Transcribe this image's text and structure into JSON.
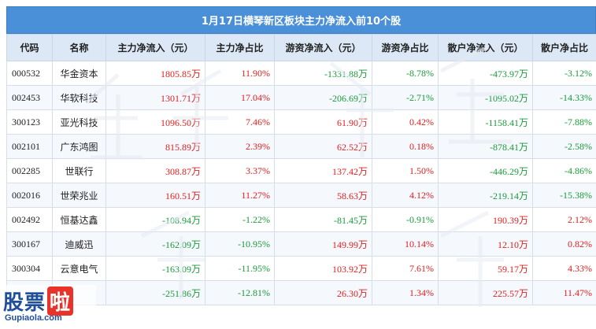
{
  "title": "1月17日横琴新区板块主力净流入前10个股",
  "columns": [
    "代码",
    "名称",
    "主力净流入（元）",
    "主力净占比",
    "游资净流入（元）",
    "游资净占比",
    "散户净流入（元）",
    "散户净占比"
  ],
  "rows": [
    {
      "code": "000532",
      "name": "华金资本",
      "main_in": "1805.85万",
      "main_pct": "11.90%",
      "hot_in": "-1331.88万",
      "hot_pct": "-8.78%",
      "retail_in": "-473.97万",
      "retail_pct": "-3.12%",
      "dir": [
        "pos",
        "pos",
        "neg",
        "neg",
        "neg",
        "neg"
      ]
    },
    {
      "code": "002453",
      "name": "华软科技",
      "main_in": "1301.71万",
      "main_pct": "17.04%",
      "hot_in": "-206.69万",
      "hot_pct": "-2.71%",
      "retail_in": "-1095.02万",
      "retail_pct": "-14.33%",
      "dir": [
        "pos",
        "pos",
        "neg",
        "neg",
        "neg",
        "neg"
      ]
    },
    {
      "code": "300123",
      "name": "亚光科技",
      "main_in": "1096.50万",
      "main_pct": "7.46%",
      "hot_in": "61.90万",
      "hot_pct": "0.42%",
      "retail_in": "-1158.41万",
      "retail_pct": "-7.88%",
      "dir": [
        "pos",
        "pos",
        "pos",
        "pos",
        "neg",
        "neg"
      ]
    },
    {
      "code": "002101",
      "name": "广东鸿图",
      "main_in": "815.89万",
      "main_pct": "2.39%",
      "hot_in": "62.52万",
      "hot_pct": "0.18%",
      "retail_in": "-878.41万",
      "retail_pct": "-2.58%",
      "dir": [
        "pos",
        "pos",
        "pos",
        "pos",
        "neg",
        "neg"
      ]
    },
    {
      "code": "002285",
      "name": "世联行",
      "main_in": "308.87万",
      "main_pct": "3.37%",
      "hot_in": "137.42万",
      "hot_pct": "1.50%",
      "retail_in": "-446.29万",
      "retail_pct": "-4.86%",
      "dir": [
        "pos",
        "pos",
        "pos",
        "pos",
        "neg",
        "neg"
      ]
    },
    {
      "code": "002016",
      "name": "世荣兆业",
      "main_in": "160.51万",
      "main_pct": "11.27%",
      "hot_in": "58.63万",
      "hot_pct": "4.12%",
      "retail_in": "-219.14万",
      "retail_pct": "-15.38%",
      "dir": [
        "pos",
        "pos",
        "pos",
        "pos",
        "neg",
        "neg"
      ]
    },
    {
      "code": "002492",
      "name": "恒基达鑫",
      "main_in": "-108.94万",
      "main_pct": "-1.22%",
      "hot_in": "-81.45万",
      "hot_pct": "-0.91%",
      "retail_in": "190.39万",
      "retail_pct": "2.12%",
      "dir": [
        "neg",
        "neg",
        "neg",
        "neg",
        "pos",
        "pos"
      ]
    },
    {
      "code": "300167",
      "name": "迪威迅",
      "main_in": "-162.09万",
      "main_pct": "-10.95%",
      "hot_in": "149.99万",
      "hot_pct": "10.14%",
      "retail_in": "12.10万",
      "retail_pct": "0.82%",
      "dir": [
        "neg",
        "neg",
        "pos",
        "pos",
        "pos",
        "pos"
      ]
    },
    {
      "code": "300304",
      "name": "云意电气",
      "main_in": "-163.09万",
      "main_pct": "-11.95%",
      "hot_in": "103.92万",
      "hot_pct": "7.61%",
      "retail_in": "59.17万",
      "retail_pct": "4.33%",
      "dir": [
        "neg",
        "neg",
        "pos",
        "pos",
        "pos",
        "pos"
      ]
    },
    {
      "code": "",
      "name": "",
      "main_in": "-251.86万",
      "main_pct": "-12.81%",
      "hot_in": "26.30万",
      "hot_pct": "1.34%",
      "retail_in": "225.57万",
      "retail_pct": "11.47%",
      "dir": [
        "neg",
        "neg",
        "pos",
        "pos",
        "pos",
        "pos"
      ]
    }
  ],
  "logo": {
    "main": "股票",
    "accent": "啦",
    "sub": "Gupiaola.com"
  },
  "colors": {
    "header_bg": "#4a90d9",
    "col_header_bg": "#dce8f5",
    "positive": "#e02020",
    "negative": "#1a9a3a"
  }
}
